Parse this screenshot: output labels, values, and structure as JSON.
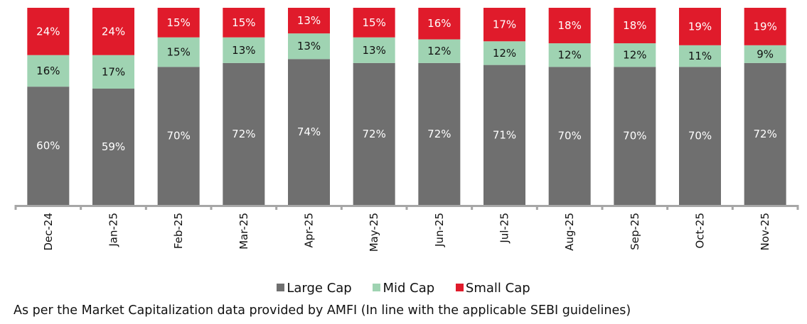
{
  "chart_data": {
    "type": "bar",
    "stacked": true,
    "title": "",
    "xlabel": "",
    "ylabel": "",
    "ylim": [
      0,
      100
    ],
    "grid": false,
    "legend_position": "bottom",
    "categories": [
      "Dec-24",
      "Jan-25",
      "Feb-25",
      "Mar-25",
      "Apr-25",
      "May-25",
      "Jun-25",
      "Jul-25",
      "Aug-25",
      "Sep-25",
      "Oct-25",
      "Nov-25"
    ],
    "series": [
      {
        "name": "Large Cap",
        "color": "#6f6f6f",
        "label_color": "#ffffff",
        "values": [
          60,
          59,
          70,
          72,
          74,
          72,
          72,
          71,
          70,
          70,
          70,
          72
        ]
      },
      {
        "name": "Mid Cap",
        "color": "#9fd3b2",
        "label_color": "#111111",
        "values": [
          16,
          17,
          15,
          13,
          13,
          13,
          12,
          12,
          12,
          12,
          11,
          9
        ]
      },
      {
        "name": "Small Cap",
        "color": "#e01b2b",
        "label_color": "#ffffff",
        "values": [
          24,
          24,
          15,
          15,
          13,
          15,
          16,
          17,
          18,
          18,
          19,
          19
        ]
      }
    ],
    "value_suffix": "%",
    "axis_color": "#a6a6a6"
  },
  "legend": {
    "items": [
      {
        "label": "Large Cap",
        "color": "#6f6f6f"
      },
      {
        "label": "Mid Cap",
        "color": "#9fd3b2"
      },
      {
        "label": "Small Cap",
        "color": "#e01b2b"
      }
    ]
  },
  "footnote": "As per the Market Capitalization data provided by AMFI (In line with the applicable SEBI guidelines)"
}
